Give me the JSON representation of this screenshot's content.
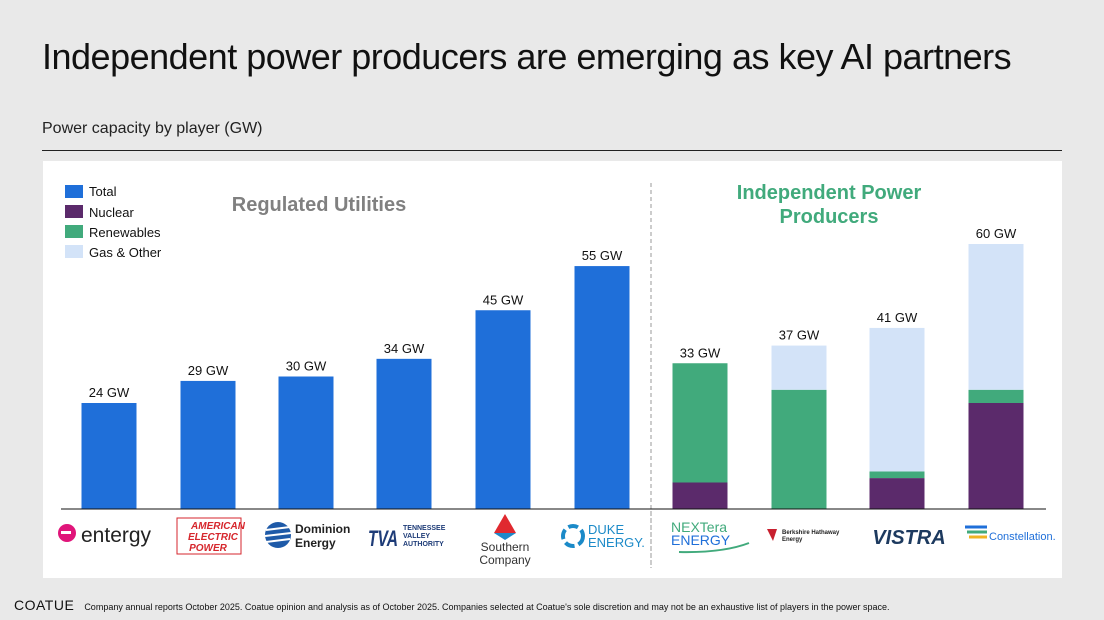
{
  "header": {
    "title": "Independent power producers are emerging as key AI partners",
    "subtitle": "Power capacity by player (GW)"
  },
  "footer": {
    "brand": "COATUE",
    "note": "Company annual reports October 2025.  Coatue opinion and analysis as of October 2025.  Companies selected at Coatue's sole discretion and may not be an exhaustive list of players in the power space."
  },
  "colors": {
    "total": "#1f6fd9",
    "nuclear": "#5b2a6b",
    "renewables": "#41aa7c",
    "gas": "#d3e3f8",
    "group_regulated": "#808080",
    "group_ipp": "#41aa7c"
  },
  "chart_data": {
    "type": "bar",
    "title": "Power capacity by player (GW)",
    "ylim": [
      0,
      60
    ],
    "legend": [
      "Total",
      "Nuclear",
      "Renewables",
      "Gas & Other"
    ],
    "legend_position": "top-left",
    "groups": [
      {
        "name": "Regulated Utilities",
        "categories": [
          "entergy",
          "American Electric Power",
          "Dominion Energy",
          "TVA",
          "Southern Company",
          "Duke Energy"
        ]
      },
      {
        "name": "Independent Power Producers",
        "categories": [
          "NextEra Energy",
          "Berkshire Hathaway Energy",
          "Vistra",
          "Constellation"
        ]
      }
    ],
    "categories": [
      "entergy",
      "American Electric Power",
      "Dominion Energy",
      "TVA",
      "Southern Company",
      "Duke Energy",
      "NextEra Energy",
      "Berkshire Hathaway Energy",
      "Vistra",
      "Constellation"
    ],
    "totals": [
      24,
      29,
      30,
      34,
      45,
      55,
      33,
      37,
      41,
      60
    ],
    "data_labels": [
      "24 GW",
      "29 GW",
      "30 GW",
      "34 GW",
      "45 GW",
      "55 GW",
      "33 GW",
      "37 GW",
      "41 GW",
      "60 GW"
    ],
    "series": [
      {
        "name": "Total",
        "values": [
          24,
          29,
          30,
          34,
          45,
          55,
          0,
          0,
          0,
          0
        ]
      },
      {
        "name": "Nuclear",
        "values": [
          0,
          0,
          0,
          0,
          0,
          0,
          6,
          0,
          7,
          24
        ]
      },
      {
        "name": "Renewables",
        "values": [
          0,
          0,
          0,
          0,
          0,
          0,
          27,
          27,
          1.5,
          3
        ]
      },
      {
        "name": "Gas & Other",
        "values": [
          0,
          0,
          0,
          0,
          0,
          0,
          0,
          10,
          32.5,
          33
        ]
      }
    ]
  },
  "logos": [
    {
      "lines": [
        "entergy"
      ]
    },
    {
      "lines": [
        "AMERICAN",
        "ELECTRIC",
        "POWER"
      ]
    },
    {
      "lines": [
        "Dominion",
        "Energy"
      ]
    },
    {
      "lines": [
        "TVA",
        "TENNESSEE",
        "VALLEY",
        "AUTHORITY"
      ]
    },
    {
      "lines": [
        "Southern",
        "Company"
      ]
    },
    {
      "lines": [
        "DUKE",
        "ENERGY."
      ]
    },
    {
      "lines": [
        "NEXTera",
        "ENERGY"
      ]
    },
    {
      "lines": [
        "Berkshire Hathaway",
        "Energy"
      ]
    },
    {
      "lines": [
        "VISTRA"
      ]
    },
    {
      "lines": [
        "Constellation."
      ]
    }
  ]
}
